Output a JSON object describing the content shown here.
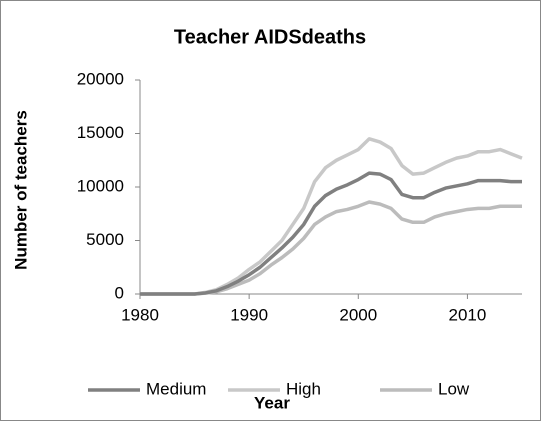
{
  "chart_data": {
    "type": "line",
    "title": "Teacher AIDSdeaths",
    "x_label": "Year",
    "y_label": "Number of teachers",
    "x": [
      1980,
      1981,
      1982,
      1983,
      1984,
      1985,
      1986,
      1987,
      1988,
      1989,
      1990,
      1991,
      1992,
      1993,
      1994,
      1995,
      1996,
      1997,
      1998,
      1999,
      2000,
      2001,
      2002,
      2003,
      2004,
      2005,
      2006,
      2007,
      2008,
      2009,
      2010,
      2011,
      2012,
      2013,
      2014,
      2015
    ],
    "series": [
      {
        "name": "Medium",
        "color": "#808080",
        "values": [
          0,
          0,
          0,
          0,
          0,
          0,
          100,
          300,
          700,
          1200,
          1800,
          2500,
          3400,
          4300,
          5300,
          6500,
          8200,
          9200,
          9800,
          10200,
          10700,
          11300,
          11200,
          10700,
          9300,
          9000,
          9000,
          9500,
          9900,
          10100,
          10300,
          10600,
          10600,
          10600,
          10500,
          10500
        ]
      },
      {
        "name": "High",
        "color": "#c8c8c8",
        "values": [
          0,
          0,
          0,
          0,
          0,
          0,
          150,
          400,
          900,
          1500,
          2300,
          3000,
          4000,
          5000,
          6500,
          8000,
          10500,
          11800,
          12500,
          13000,
          13500,
          14500,
          14200,
          13600,
          12000,
          11200,
          11300,
          11800,
          12300,
          12700,
          12900,
          13300,
          13300,
          13500,
          13100,
          12700
        ]
      },
      {
        "name": "Low",
        "color": "#bcbcbc",
        "values": [
          0,
          0,
          0,
          0,
          0,
          0,
          80,
          200,
          500,
          900,
          1300,
          1900,
          2700,
          3400,
          4200,
          5200,
          6500,
          7200,
          7700,
          7900,
          8200,
          8600,
          8400,
          8000,
          7000,
          6700,
          6700,
          7200,
          7500,
          7700,
          7900,
          8000,
          8000,
          8200,
          8200,
          8200
        ]
      }
    ],
    "xlim": [
      1980,
      2015
    ],
    "xticks": [
      1980,
      1990,
      2000,
      2010
    ],
    "ylim": [
      0,
      20000
    ],
    "yticks": [
      0,
      5000,
      10000,
      15000,
      20000
    ],
    "grid": false,
    "legend": "bottom"
  }
}
